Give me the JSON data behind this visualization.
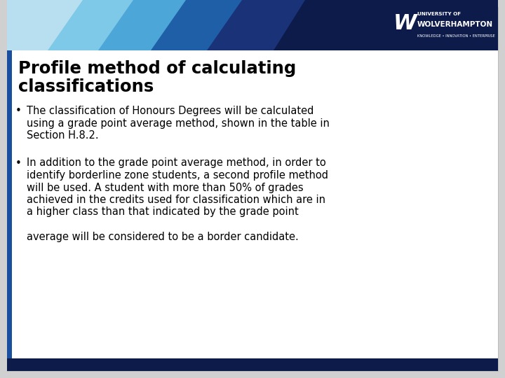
{
  "title_line1": "Profile method of calculating",
  "title_line2": "classifications",
  "bullet1_line1": "The classification of Honours Degrees will be calculated",
  "bullet1_line2": "using a grade point average method, shown in the table in",
  "bullet1_line3": "Section H.8.2.",
  "bullet2_line1": "In addition to the grade point average method, in order to",
  "bullet2_line2": "identify borderline zone students, a second profile method",
  "bullet2_line3": "will be used. A student with more than 50% of grades",
  "bullet2_line4": "achieved in the credits used for classification which are in",
  "bullet2_line5": "a higher class than that indicated by the grade point",
  "bullet2_line6": "",
  "bullet2_line7": "average will be considered to be a border candidate.",
  "bg_color": "#e8e8e8",
  "slide_bg": "#d0d0d0",
  "content_bg": "#ffffff",
  "title_color": "#000000",
  "body_color": "#000000",
  "header_navy": "#0d1b4b",
  "header_dark_blue": "#1a3278",
  "header_mid_blue": "#1e5fa8",
  "header_light_blue": "#4da6d8",
  "header_lightest_blue": "#7ec8e8",
  "header_palest_blue": "#b8dff0",
  "left_bar_color": "#1a4fa0",
  "bottom_bar_color": "#0d1b4b",
  "logo_text_color": "#ffffff"
}
